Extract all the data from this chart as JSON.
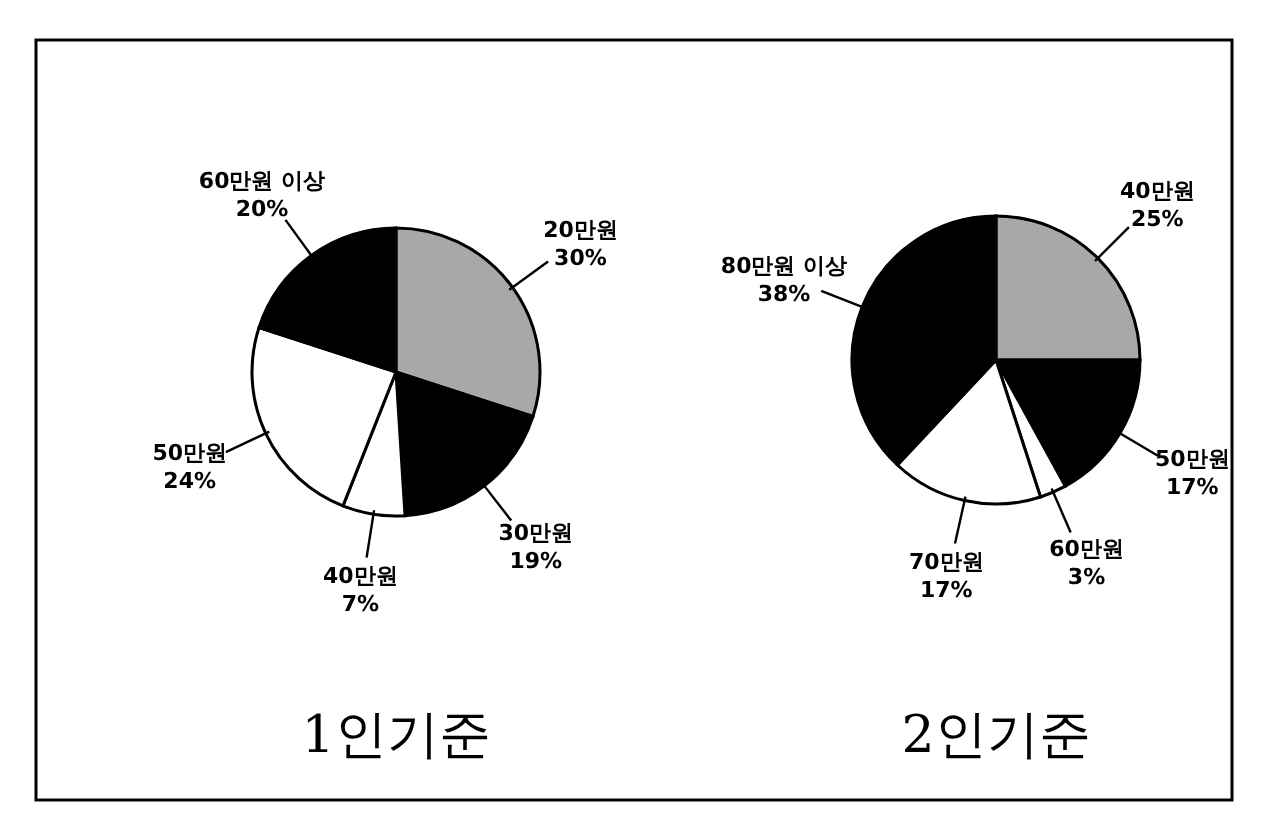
{
  "chart_data": [
    {
      "type": "pie",
      "title": "1인기준",
      "categories": [
        "20만원",
        "30만원",
        "40만원",
        "50만원",
        "60만원 이상"
      ],
      "values": [
        30,
        19,
        7,
        24,
        20
      ],
      "value_labels": [
        "30%",
        "19%",
        "7%",
        "24%",
        "20%"
      ],
      "colors": [
        "#a8a8a8",
        "#000000",
        "#ffffff",
        "#ffffff",
        "#000000"
      ]
    },
    {
      "type": "pie",
      "title": "2인기준",
      "categories": [
        "40만원",
        "50만원",
        "60만원",
        "70만원",
        "80만원 이상"
      ],
      "values": [
        25,
        17,
        3,
        17,
        38
      ],
      "value_labels": [
        "25%",
        "17%",
        "3%",
        "17%",
        "38%"
      ],
      "colors": [
        "#a8a8a8",
        "#000000",
        "#ffffff",
        "#ffffff",
        "#000000"
      ]
    }
  ]
}
